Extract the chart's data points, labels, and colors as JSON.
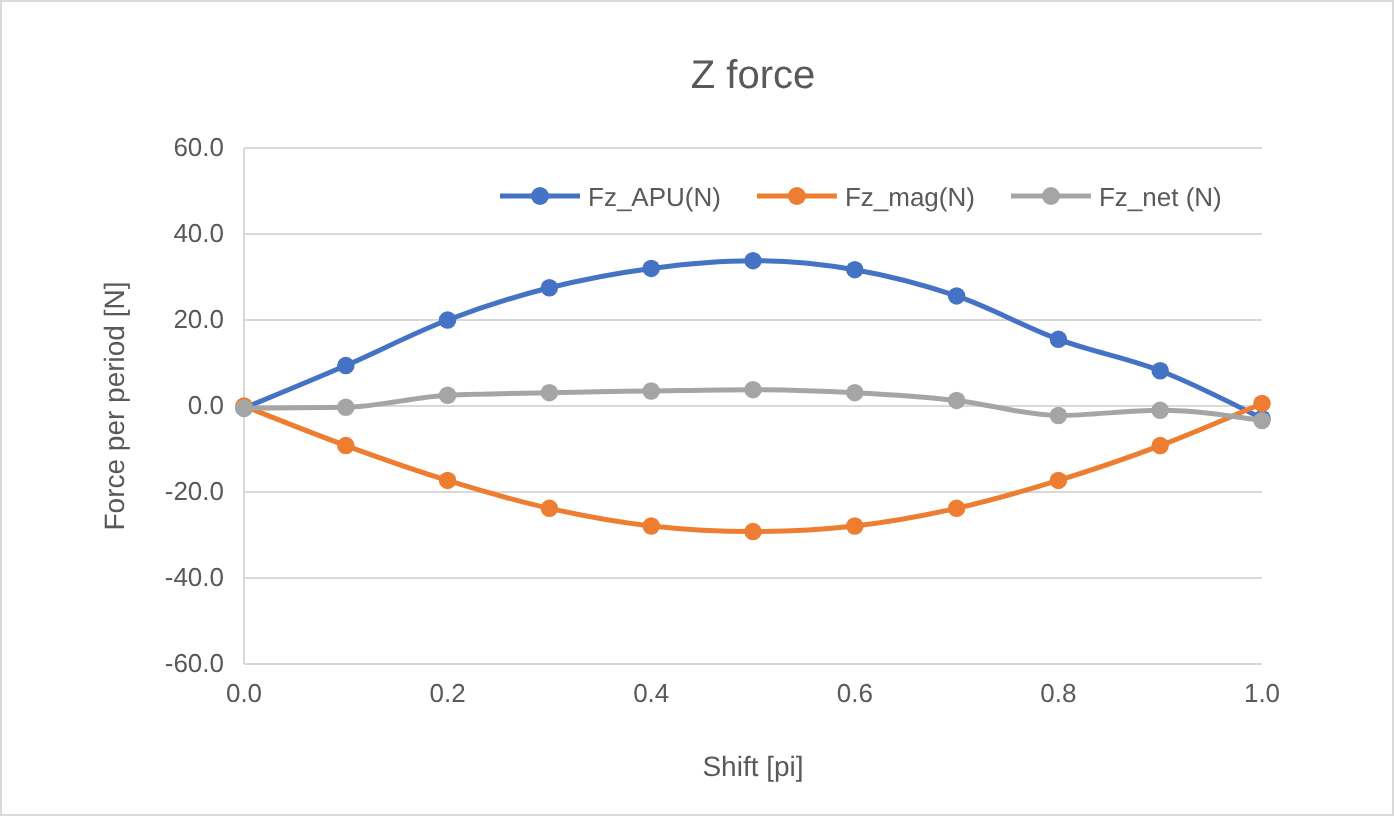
{
  "chart_data": {
    "type": "line",
    "title": "Z force",
    "xlabel": "Shift [pi]",
    "ylabel": "Force per period [N]",
    "x": [
      0,
      0.1,
      0.2,
      0.3,
      0.4,
      0.5,
      0.6,
      0.7,
      0.8,
      0.9,
      1.0
    ],
    "xlim": [
      0,
      1
    ],
    "xticks": [
      {
        "value": 0,
        "label": "0.0"
      },
      {
        "value": 0.2,
        "label": "0.2"
      },
      {
        "value": 0.4,
        "label": "0.4"
      },
      {
        "value": 0.6,
        "label": "0.6"
      },
      {
        "value": 0.8,
        "label": "0.8"
      },
      {
        "value": 1,
        "label": "1.0"
      }
    ],
    "ylim": [
      -60,
      60
    ],
    "yticks": [
      {
        "value": -60,
        "label": "-60.0"
      },
      {
        "value": -40,
        "label": "-40.0"
      },
      {
        "value": -20,
        "label": "-20.0"
      },
      {
        "value": 0,
        "label": "0.0"
      },
      {
        "value": 20,
        "label": "20.0"
      },
      {
        "value": 40,
        "label": "40.0"
      },
      {
        "value": 60,
        "label": "60.0"
      }
    ],
    "grid": "y",
    "legend": "top right",
    "marker": "circle",
    "line_style": "solid",
    "series": [
      {
        "name": "Fz_APU(N)",
        "color": "#4472c4",
        "values": [
          -0.5,
          9.4,
          20,
          27.5,
          32,
          33.8,
          31.7,
          25.6,
          15.5,
          8.2,
          -2.9
        ]
      },
      {
        "name": "Fz_mag(N)",
        "color": "#ed7d31",
        "values": [
          0,
          -9.2,
          -17.3,
          -23.8,
          -27.9,
          -29.2,
          -27.9,
          -23.8,
          -17.3,
          -9.2,
          0.6
        ]
      },
      {
        "name": "Fz_net (N)",
        "color": "#a5a5a5",
        "values": [
          -0.5,
          -0.3,
          2.5,
          3.1,
          3.5,
          3.8,
          3.1,
          1.3,
          -2.2,
          -1,
          -3.4
        ]
      }
    ]
  }
}
